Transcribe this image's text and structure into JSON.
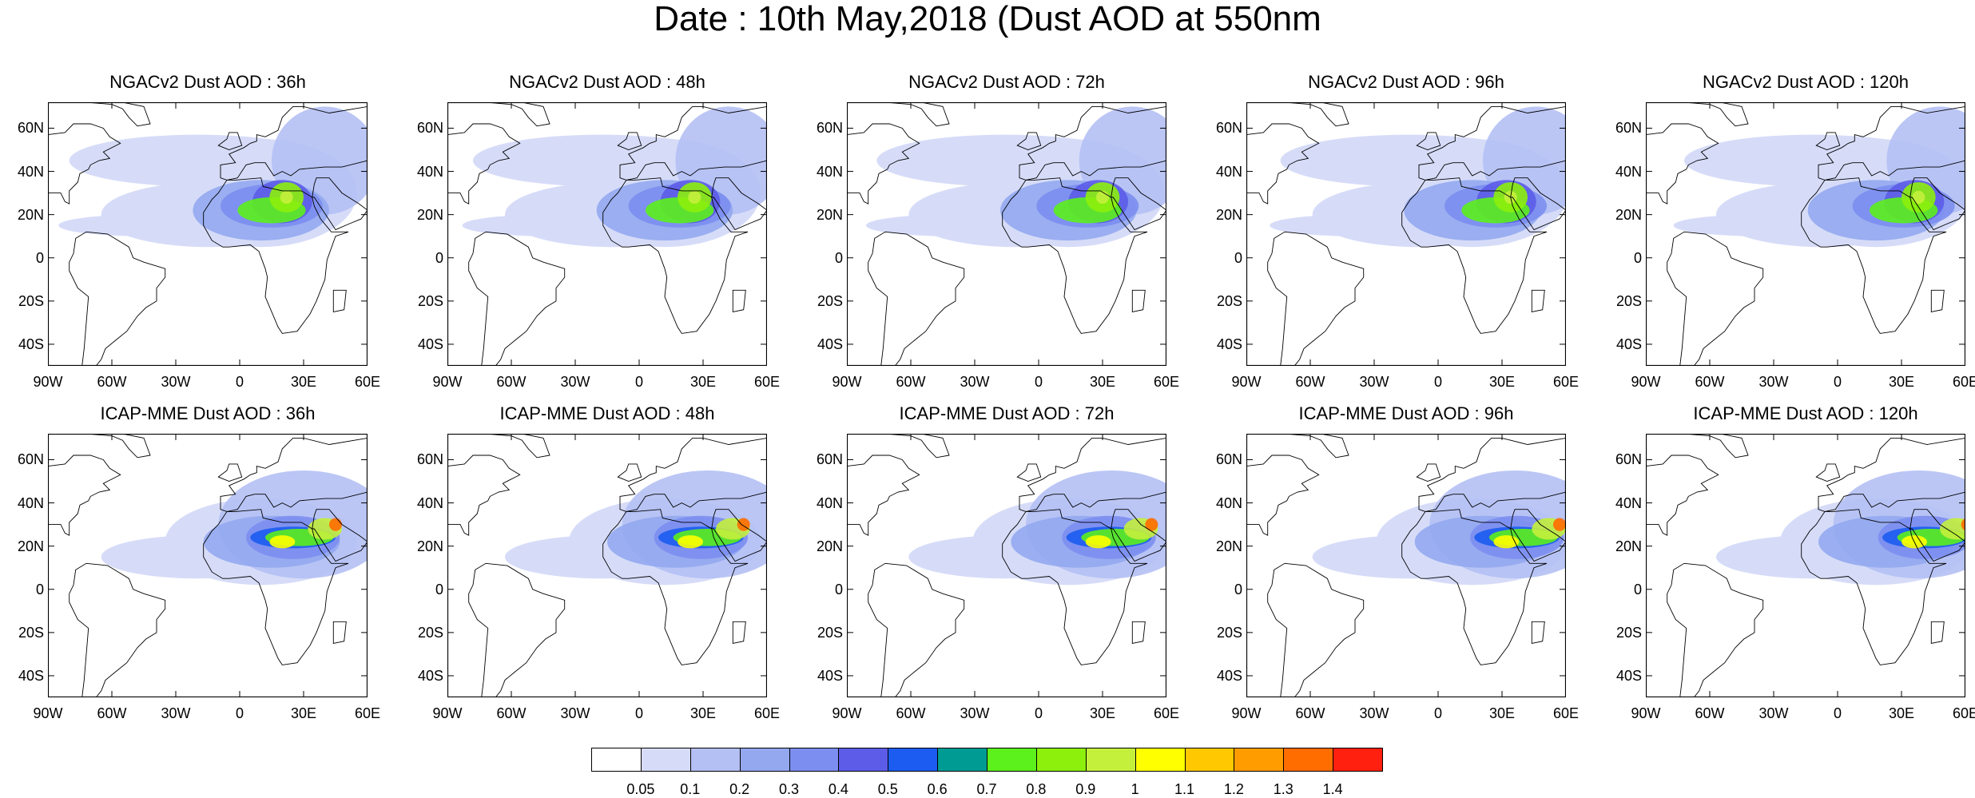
{
  "title": "Date : 10th May,2018 (Dust AOD at 550nm",
  "lat_labels": [
    "60N",
    "40N",
    "20N",
    "0",
    "20S",
    "40S"
  ],
  "lon_labels": [
    "90W",
    "60W",
    "30W",
    "0",
    "30E",
    "60E"
  ],
  "panels": [
    {
      "title": "NGACv2 Dust AOD : 36h",
      "model": "NGACv2",
      "lead": "36h"
    },
    {
      "title": "NGACv2 Dust AOD : 48h",
      "model": "NGACv2",
      "lead": "48h"
    },
    {
      "title": "NGACv2 Dust AOD : 72h",
      "model": "NGACv2",
      "lead": "72h"
    },
    {
      "title": "NGACv2 Dust AOD : 96h",
      "model": "NGACv2",
      "lead": "96h"
    },
    {
      "title": "NGACv2 Dust AOD : 120h",
      "model": "NGACv2",
      "lead": "120h"
    },
    {
      "title": "ICAP-MME Dust AOD : 36h",
      "model": "ICAP",
      "lead": "36h"
    },
    {
      "title": "ICAP-MME Dust AOD : 48h",
      "model": "ICAP",
      "lead": "48h"
    },
    {
      "title": "ICAP-MME Dust AOD : 72h",
      "model": "ICAP",
      "lead": "72h"
    },
    {
      "title": "ICAP-MME Dust AOD : 96h",
      "model": "ICAP",
      "lead": "96h"
    },
    {
      "title": "ICAP-MME Dust AOD : 120h",
      "model": "ICAP",
      "lead": "120h"
    }
  ],
  "colorbar": {
    "labels": [
      "0.05",
      "0.1",
      "0.2",
      "0.3",
      "0.4",
      "0.5",
      "0.6",
      "0.7",
      "0.8",
      "0.9",
      "1",
      "1.1",
      "1.2",
      "1.3",
      "1.4"
    ],
    "colors": [
      "#ffffff",
      "#d6dcf8",
      "#b4c0f4",
      "#94a8f0",
      "#7c8ef0",
      "#5c5ce8",
      "#1c5cf0",
      "#009c94",
      "#5cf01c",
      "#8cf00c",
      "#c4f03c",
      "#ffff00",
      "#ffc800",
      "#ff9c00",
      "#ff6c00",
      "#ff2010"
    ]
  }
}
